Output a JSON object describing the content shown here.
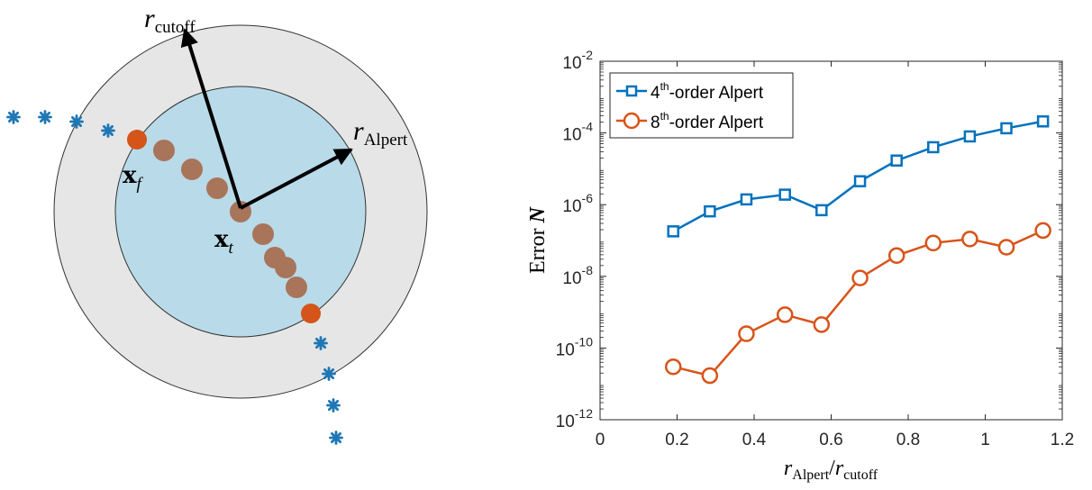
{
  "diagram": {
    "labels": {
      "r_cutoff": {
        "base": "r",
        "sub": "cutoff"
      },
      "r_alpert": {
        "base": "r",
        "sub": "Alpert"
      },
      "x_f": {
        "base": "x",
        "sub": "f"
      },
      "x_t": {
        "base": "x",
        "sub": "t"
      }
    },
    "colors": {
      "outer_disk": "#e6e6e6",
      "inner_disk": "#b9dae8",
      "brown_node": "#a8745a",
      "orange_node": "#d4541a",
      "blue_node": "#1f77b4",
      "arrow": "#000000"
    }
  },
  "chart_data": {
    "type": "line",
    "ylabel": {
      "text": "Error",
      "var": "N"
    },
    "xlabel": {
      "num_base": "r",
      "num_sub": "Alpert",
      "den_base": "r",
      "den_sub": "cutoff"
    },
    "xlim": [
      0,
      1.2
    ],
    "ylim": [
      1e-12,
      0.01
    ],
    "yscale": "log",
    "xticks": [
      "0",
      "0.2",
      "0.4",
      "0.6",
      "0.8",
      "1",
      "1.2"
    ],
    "yticks": [
      {
        "base": "10",
        "exp": "-12"
      },
      {
        "base": "10",
        "exp": "-10"
      },
      {
        "base": "10",
        "exp": "-8"
      },
      {
        "base": "10",
        "exp": "-6"
      },
      {
        "base": "10",
        "exp": "-4"
      },
      {
        "base": "10",
        "exp": "-2"
      }
    ],
    "legend_position": "top-left",
    "x": [
      0.19,
      0.285,
      0.38,
      0.48,
      0.575,
      0.675,
      0.77,
      0.865,
      0.96,
      1.055,
      1.15
    ],
    "series": [
      {
        "name": "4th-order Alpert",
        "legend": {
          "pre": "4",
          "sup": "th",
          "post": "-order Alpert"
        },
        "marker": "square",
        "color": "#0072bd",
        "values": [
          1.8e-07,
          6.5e-07,
          1.4e-06,
          1.9e-06,
          7e-07,
          4.5e-06,
          1.7e-05,
          4e-05,
          8e-05,
          0.000135,
          0.00021
        ]
      },
      {
        "name": "8th-order Alpert",
        "legend": {
          "pre": "8",
          "sup": "th",
          "post": "-order Alpert"
        },
        "marker": "circle",
        "color": "#d95319",
        "values": [
          3e-11,
          1.7e-11,
          2.5e-10,
          8.5e-10,
          4.5e-10,
          9e-09,
          3.8e-08,
          8.5e-08,
          1.1e-07,
          6.5e-08,
          1.9e-07
        ]
      }
    ]
  }
}
